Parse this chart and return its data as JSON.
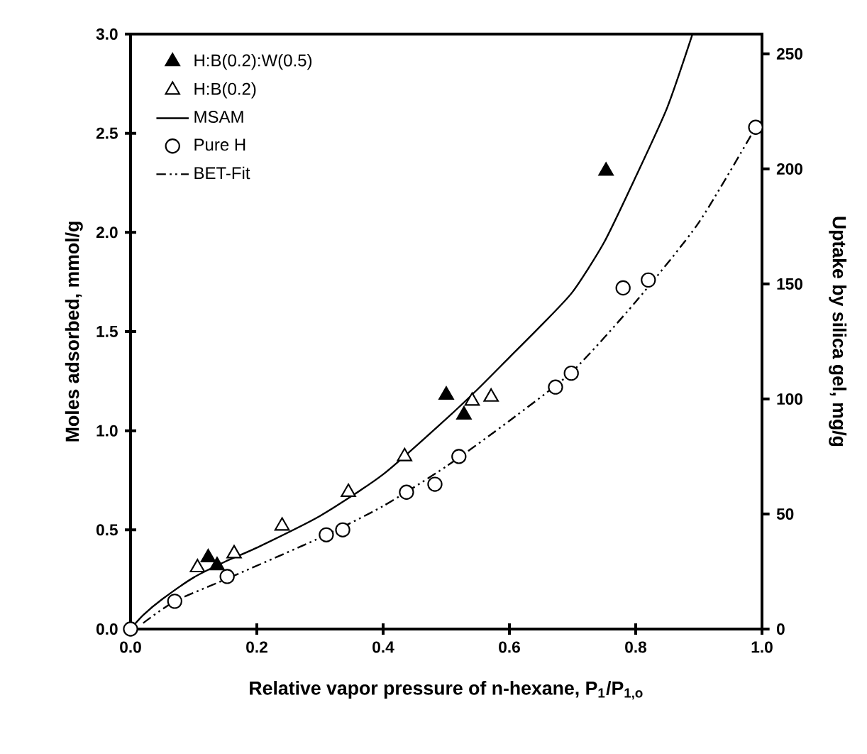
{
  "chart_data": {
    "type": "scatter",
    "xlabel": "Relative vapor pressure of n-hexane, P$_{1}$/P$_{1,o}$",
    "ylabel": "Moles adsorbed, mmol/g",
    "y2label": "Uptake by silica gel, mg/g",
    "xlim": [
      0,
      1.0
    ],
    "ylim": [
      0,
      3.0
    ],
    "y2lim": [
      0,
      258.6
    ],
    "xticks": [
      {
        "value": 0,
        "label": "0.0"
      },
      0.2,
      0.4,
      0.6,
      0.8,
      {
        "value": 1.0,
        "label": "1.0"
      }
    ],
    "yticks": [
      {
        "value": 0,
        "label": "0.0"
      },
      0.5,
      {
        "value": 1.0,
        "label": "1.0"
      },
      1.5,
      {
        "value": 2.0,
        "label": "2.0"
      },
      2.5,
      {
        "value": 3.0,
        "label": "3.0"
      }
    ],
    "y2ticks": [
      0,
      50,
      100,
      150,
      200,
      250
    ],
    "legend": "top left",
    "grid": false,
    "series": [
      {
        "name": "H:B(0.2):W(0.5)",
        "marker": "triangle",
        "color": "#000000",
        "x": [
          0.123,
          0.137,
          0.5,
          0.528,
          0.753
        ],
        "values": [
          0.36,
          0.32,
          1.18,
          1.08,
          2.31
        ]
      },
      {
        "name": "H:B(0.2)",
        "marker": "triangle",
        "color": "#ffffff",
        "x": [
          0.106,
          0.164,
          0.24,
          0.345,
          0.434,
          0.541,
          0.571
        ],
        "values": [
          0.31,
          0.38,
          0.52,
          0.69,
          0.87,
          1.15,
          1.17
        ]
      },
      {
        "name": "MSAM",
        "type": "line",
        "marker": "none",
        "line_style": "solid",
        "color": "#000000",
        "x": [
          0,
          0.02,
          0.05,
          0.1,
          0.15,
          0.2,
          0.3,
          0.4,
          0.5,
          0.55,
          0.6,
          0.65,
          0.7,
          0.75,
          0.8,
          0.85,
          0.89
        ],
        "values": [
          0,
          0.07,
          0.15,
          0.26,
          0.34,
          0.41,
          0.57,
          0.78,
          1.06,
          1.21,
          1.37,
          1.53,
          1.7,
          1.95,
          2.28,
          2.63,
          3.0
        ]
      },
      {
        "name": "Pure H",
        "marker": "circle",
        "color": "#ffffff",
        "x": [
          0,
          0.07,
          0.153,
          0.31,
          0.336,
          0.437,
          0.482,
          0.52,
          0.673,
          0.698,
          0.78,
          0.82,
          0.99
        ],
        "values": [
          0,
          0.14,
          0.265,
          0.475,
          0.5,
          0.69,
          0.73,
          0.87,
          1.22,
          1.29,
          1.72,
          1.76,
          2.53
        ]
      },
      {
        "name": "BET-Fit",
        "type": "line",
        "marker": "none",
        "line_style": "dashdot",
        "color": "#000000",
        "x": [
          0.02,
          0.07,
          0.15,
          0.3,
          0.4,
          0.5,
          0.6,
          0.7,
          0.8,
          0.9,
          0.99
        ],
        "values": [
          0.03,
          0.14,
          0.25,
          0.46,
          0.62,
          0.82,
          1.05,
          1.3,
          1.65,
          2.05,
          2.53
        ]
      }
    ]
  }
}
